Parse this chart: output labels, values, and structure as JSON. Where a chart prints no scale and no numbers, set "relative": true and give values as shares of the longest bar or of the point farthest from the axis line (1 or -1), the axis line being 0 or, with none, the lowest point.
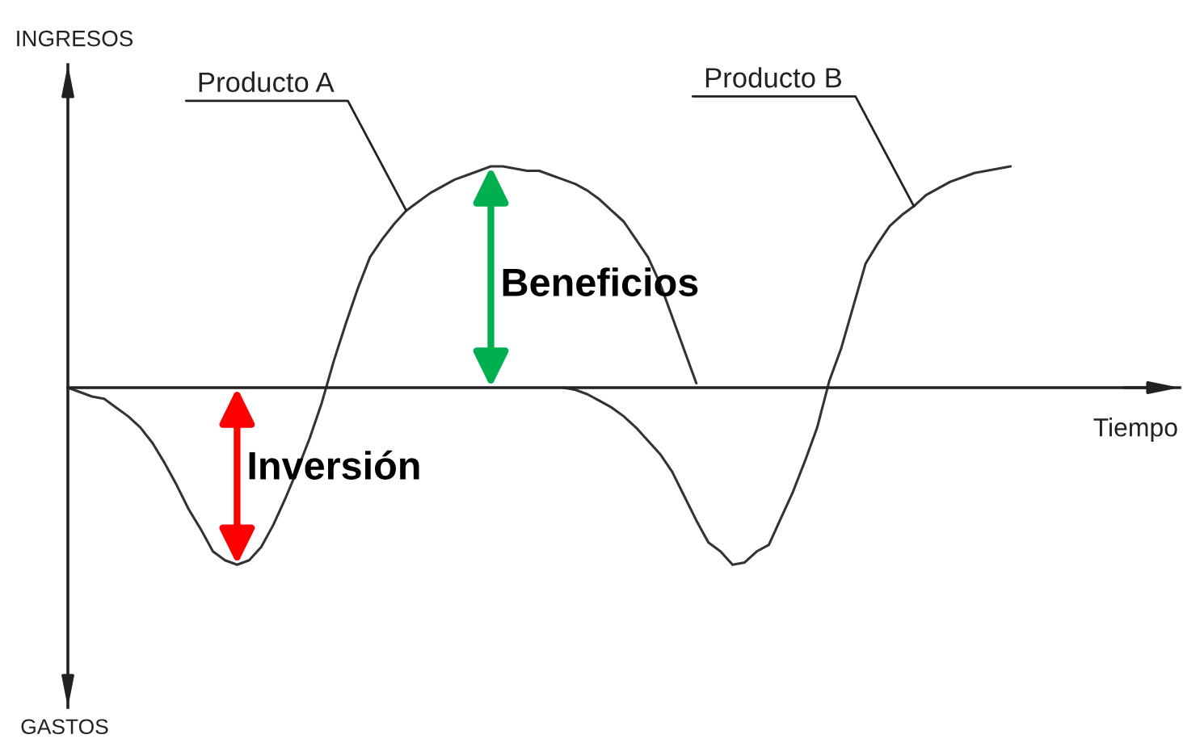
{
  "chart_data": {
    "type": "line",
    "relative": true,
    "xlabel": "Tiempo",
    "annotations": [
      "INGRESOS",
      "GASTOS",
      "Beneficios",
      "Inversión"
    ],
    "categories": [
      null,
      null,
      null,
      null,
      null,
      null,
      null,
      null,
      null,
      null,
      null,
      null,
      null,
      null,
      null,
      null,
      null,
      null,
      null,
      null,
      null,
      null,
      null,
      null,
      null,
      null,
      null,
      null,
      null,
      null,
      null,
      null,
      null,
      null,
      null,
      null,
      null,
      null,
      null,
      null,
      null,
      null,
      null,
      null,
      null,
      null,
      null,
      null,
      null,
      null,
      null,
      null,
      null,
      null,
      null,
      null,
      null,
      null,
      null,
      null,
      null,
      null,
      null,
      null,
      null,
      null,
      null,
      null,
      null,
      null,
      null,
      null,
      null,
      null,
      null,
      null,
      null,
      null,
      null,
      null,
      null,
      null,
      null,
      null,
      null,
      null,
      null,
      null,
      null,
      null,
      null,
      null
    ],
    "series": [
      {
        "name": "Producto A",
        "color": "#333333",
        "values": [
          0,
          -0.02,
          -0.04,
          -0.05,
          -0.09,
          -0.13,
          -0.18,
          -0.25,
          -0.34,
          -0.44,
          -0.55,
          -0.64,
          -0.74,
          -0.78,
          -0.8,
          -0.78,
          -0.72,
          -0.62,
          -0.5,
          -0.37,
          -0.23,
          -0.07,
          0.12,
          0.29,
          0.45,
          0.59,
          0.67,
          0.74,
          0.8,
          0.84,
          0.88,
          0.91,
          0.94,
          0.96,
          0.98,
          1.0,
          1.0,
          0.99,
          0.98,
          0.98,
          0.96,
          0.94,
          0.92,
          0.89,
          0.85,
          0.8,
          0.75,
          0.67,
          0.59,
          0.47,
          0.32,
          0.17,
          0.02,
          null,
          null,
          null,
          null,
          null,
          null,
          null,
          null,
          null,
          null,
          null,
          null,
          null,
          null,
          null,
          null,
          null,
          null,
          null,
          null,
          null,
          null,
          null,
          null,
          null,
          null,
          null,
          null,
          null,
          null,
          null,
          null,
          null,
          null,
          null,
          null,
          null,
          null,
          null
        ]
      },
      {
        "name": "Producto B",
        "color": "#333333",
        "values": [
          null,
          null,
          null,
          null,
          null,
          null,
          null,
          null,
          null,
          null,
          null,
          null,
          null,
          null,
          null,
          null,
          null,
          null,
          null,
          null,
          null,
          null,
          null,
          null,
          null,
          null,
          null,
          null,
          null,
          null,
          null,
          null,
          null,
          null,
          null,
          null,
          null,
          null,
          null,
          null,
          null,
          0,
          -0.01,
          -0.03,
          -0.06,
          -0.09,
          -0.13,
          -0.18,
          -0.24,
          -0.3,
          -0.38,
          -0.49,
          -0.6,
          -0.7,
          -0.74,
          -0.8,
          -0.79,
          -0.74,
          -0.71,
          -0.59,
          -0.47,
          -0.33,
          -0.18,
          0.03,
          0.18,
          0.37,
          0.56,
          0.65,
          0.73,
          0.78,
          0.82,
          0.87,
          0.9,
          0.93,
          0.95,
          0.97,
          0.98,
          0.99,
          1.0,
          null,
          null,
          null,
          null,
          null,
          null,
          null,
          null,
          null,
          null,
          null,
          null,
          null
        ]
      }
    ]
  }
}
